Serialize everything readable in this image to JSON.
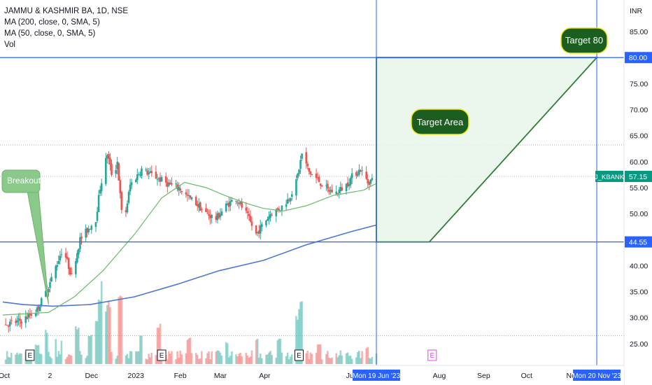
{
  "legend": {
    "symbol_line": "JAMMU & KASHMIR BA, 1D, NSE",
    "ma200_line": "MA (200, close, 0, SMA, 5)",
    "ma50_line": "MA (50, close, 0, SMA, 5)",
    "vol_line": "Vol"
  },
  "colors": {
    "up": "#26a69a",
    "down": "#ef5350",
    "ma50": "#66bb6a",
    "ma200": "#4a78d6",
    "hline": "#2962ff",
    "target_fill": "#e8f5e9",
    "target_stroke": "#2e7d32",
    "callout_bg": "#1b5e20",
    "callout_border": "#f5e614",
    "breakout_bg": "#8bc98b",
    "price_tag": "#2962ff",
    "symbol_tag": "#089981"
  },
  "chart_data": {
    "type": "candlestick",
    "currency": "INR",
    "y_ticks": [
      "85.00",
      "75.00",
      "70.00",
      "65.00",
      "60.00",
      "55.00",
      "50.00",
      "40.00",
      "35.00",
      "30.00",
      "25.00"
    ],
    "ylim": [
      21,
      87
    ],
    "x_ticks": [
      "Oct",
      "2",
      "Dec",
      "2023",
      "Feb",
      "Mar",
      "Apr",
      "Jun",
      "Aug",
      "Sep",
      "Oct",
      "No"
    ],
    "x_tick_dates": [
      "2022-10-01",
      "2022-11-02",
      "2022-12-01",
      "2023-01-01",
      "2023-02-01",
      "2023-03-01",
      "2023-04-01",
      "2023-06-01",
      "2023-08-01",
      "2023-09-01",
      "2023-10-01",
      "2023-11-01"
    ],
    "date_range": [
      "2022-10-01",
      "2023-11-30"
    ],
    "price_keypoints": [
      [
        "2022-10-01",
        28.5
      ],
      [
        "2022-10-15",
        29.5
      ],
      [
        "2022-10-25",
        31.5
      ],
      [
        "2022-11-02",
        36
      ],
      [
        "2022-11-08",
        40.5
      ],
      [
        "2022-11-12",
        43.5
      ],
      [
        "2022-11-18",
        38
      ],
      [
        "2022-11-24",
        45
      ],
      [
        "2022-12-01",
        47.5
      ],
      [
        "2022-12-05",
        49
      ],
      [
        "2022-12-08",
        55
      ],
      [
        "2022-12-13",
        61.5
      ],
      [
        "2022-12-17",
        56.5
      ],
      [
        "2022-12-20",
        60
      ],
      [
        "2022-12-24",
        47
      ],
      [
        "2022-12-29",
        55.5
      ],
      [
        "2023-01-06",
        58.5
      ],
      [
        "2023-01-16",
        57
      ],
      [
        "2023-01-26",
        55.5
      ],
      [
        "2023-02-01",
        55
      ],
      [
        "2023-02-06",
        53.5
      ],
      [
        "2023-02-13",
        52
      ],
      [
        "2023-02-20",
        50
      ],
      [
        "2023-02-27",
        49
      ],
      [
        "2023-03-06",
        51.5
      ],
      [
        "2023-03-13",
        53
      ],
      [
        "2023-03-20",
        50
      ],
      [
        "2023-03-27",
        46
      ],
      [
        "2023-04-01",
        48
      ],
      [
        "2023-04-06",
        50
      ],
      [
        "2023-04-13",
        51
      ],
      [
        "2023-04-19",
        53
      ],
      [
        "2023-04-24",
        56
      ],
      [
        "2023-04-28",
        61.5
      ],
      [
        "2023-05-03",
        58
      ],
      [
        "2023-05-09",
        56.5
      ],
      [
        "2023-05-16",
        54.5
      ],
      [
        "2023-05-22",
        54
      ],
      [
        "2023-05-29",
        55.5
      ],
      [
        "2023-06-03",
        57.5
      ],
      [
        "2023-06-08",
        58.5
      ],
      [
        "2023-06-13",
        56
      ],
      [
        "2023-06-19",
        57
      ]
    ],
    "ma50_points": [
      [
        "2022-10-01",
        30.5
      ],
      [
        "2022-11-02",
        31
      ],
      [
        "2022-11-20",
        34
      ],
      [
        "2022-12-10",
        39
      ],
      [
        "2023-01-01",
        46
      ],
      [
        "2023-01-20",
        53
      ],
      [
        "2023-02-05",
        56
      ],
      [
        "2023-02-20",
        55
      ],
      [
        "2023-03-05",
        53.5
      ],
      [
        "2023-03-20",
        52
      ],
      [
        "2023-04-01",
        51
      ],
      [
        "2023-04-15",
        50.5
      ],
      [
        "2023-05-01",
        51.5
      ],
      [
        "2023-05-20",
        53.5
      ],
      [
        "2023-06-10",
        54.5
      ],
      [
        "2023-06-19",
        55.8
      ]
    ],
    "ma200_points": [
      [
        "2022-10-01",
        33
      ],
      [
        "2022-10-15",
        32.5
      ],
      [
        "2022-11-05",
        32.2
      ],
      [
        "2022-12-01",
        32.5
      ],
      [
        "2023-01-01",
        34
      ],
      [
        "2023-02-01",
        36.5
      ],
      [
        "2023-03-01",
        39
      ],
      [
        "2023-04-01",
        41
      ],
      [
        "2023-05-01",
        44
      ],
      [
        "2023-06-01",
        46.5
      ],
      [
        "2023-06-19",
        47.8
      ]
    ],
    "volume_spikes": [
      [
        "2022-10-10",
        0.1
      ],
      [
        "2022-10-18",
        0.12
      ],
      [
        "2022-10-25",
        0.22
      ],
      [
        "2022-10-31",
        0.38
      ],
      [
        "2022-11-06",
        0.3
      ],
      [
        "2022-11-12",
        0.26
      ],
      [
        "2022-11-22",
        0.42
      ],
      [
        "2022-12-01",
        0.34
      ],
      [
        "2022-12-05",
        0.48
      ],
      [
        "2022-12-08",
        0.75
      ],
      [
        "2022-12-10",
        1.0
      ],
      [
        "2022-12-12",
        0.65
      ],
      [
        "2022-12-14",
        0.72
      ],
      [
        "2022-12-22",
        0.85
      ],
      [
        "2023-01-06",
        0.35
      ],
      [
        "2023-01-18",
        0.45
      ],
      [
        "2023-02-08",
        0.3
      ],
      [
        "2023-03-06",
        0.25
      ],
      [
        "2023-03-27",
        0.28
      ],
      [
        "2023-04-12",
        0.3
      ],
      [
        "2023-04-25",
        0.55
      ],
      [
        "2023-04-27",
        0.7
      ],
      [
        "2023-05-10",
        0.25
      ],
      [
        "2023-06-12",
        0.2
      ]
    ],
    "horizontal_lines": [
      80.0,
      44.55
    ],
    "current_price": "57.15",
    "symbol_tag": "J_KBANK",
    "price_tags": [
      "80.00",
      "44.55",
      "57.15"
    ],
    "dotted_levels": [
      63.2,
      57.15,
      26.5
    ],
    "target_area": {
      "points": [
        [
          "2023-06-19",
          80.0
        ],
        [
          "2023-11-20",
          80.0
        ],
        [
          "2023-07-26",
          44.55
        ],
        [
          "2023-06-19",
          44.55
        ]
      ]
    },
    "vertical_markers": [
      "2023-06-19",
      "2023-11-20"
    ],
    "date_tags": [
      "Mon 19 Jun '23",
      "Mon 20 Nov '23"
    ],
    "earnings_markers": [
      "2022-10-20",
      "2023-01-20",
      "2023-04-26",
      "2023-07-28"
    ],
    "earnings_label": "E",
    "annotations": {
      "breakout": "Breakout",
      "target_area": "Target Area",
      "target_80": "Target 80"
    }
  }
}
